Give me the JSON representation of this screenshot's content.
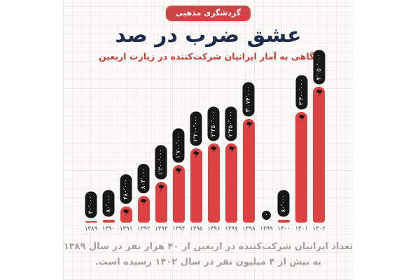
{
  "badge": {
    "label": "گردشگری مذهبی"
  },
  "header": {
    "title": "عشق ضرب در صد",
    "subtitle": "نگاهی به آمار ایرانیان شرکت‌کننده در زیارت اربعین"
  },
  "chart_data": {
    "type": "bar",
    "title": "عشق ضرب در صد",
    "subtitle": "نگاهی به آمار ایرانیان شرکت‌کننده در زیارت اربعین",
    "categories": [
      "۱۳۸۹",
      "۱۳۹۰",
      "۱۳۹۱",
      "۱۳۹۲",
      "۱۳۹۳",
      "۱۳۹۴",
      "۱۳۹۵",
      "۱۳۹۶",
      "۱۳۹۷",
      "۱۳۹۸",
      "۱۳۹۹",
      "۱۴۰۰",
      "۱۴۰۱",
      "۱۴۰۲"
    ],
    "values": [
      40000,
      80000,
      480000,
      802000,
      1200000,
      1700000,
      2200000,
      2350000,
      2350000,
      3074000,
      0,
      80000,
      3300000,
      4050000
    ],
    "value_labels": [
      "۴۰٬۰۰۰",
      "۸۰٬۰۰۰",
      "۴۸۰٬۰۰۰",
      "۸۰۲٬۰۰۰",
      "۱٬۲۰۰٬۰۰۰",
      "۱٬۷۰۰٬۰۰۰",
      "۲٬۲۰۰٬۰۰۰",
      "۲٬۳۵۰٬۰۰۰",
      "۲٬۳۵۰٬۰۰۰",
      "۳٬۰۷۴٬۰۰۰",
      "۰",
      "۸۰٬۰۰۰",
      "۳٬۳۰۰٬۰۰۰",
      "۴٬۰۵۰٬۰۰۰"
    ],
    "xlabel": "",
    "ylabel": "",
    "ylim": [
      0,
      4200000
    ],
    "grid": "subtle background texture only",
    "legend": "none",
    "bar_color": "#db4242",
    "label_capsule_color": "#171717",
    "bar_icon": "black-flag"
  },
  "footer": {
    "line1": "تعداد ایرانیان شرکت‌کننده در اربعین از ۴۰ هزار نفر در سال ۱۳۸۹",
    "line2": "به بیش از ۴ میلیون نفر در سال ۱۴۰۲ رسیده است."
  },
  "colors": {
    "background": "#ffffff",
    "card_background": "#fbfaf8",
    "badge_red": "#ce4545",
    "title_navy": "#1e2c4e",
    "subtitle_red": "#c63d35",
    "bar_red": "#db4242",
    "capsule_black": "#171717",
    "year_label": "#4a5469",
    "footer_gray": "#a5a09a"
  },
  "icons": {
    "flag_glyph": "⚑"
  }
}
